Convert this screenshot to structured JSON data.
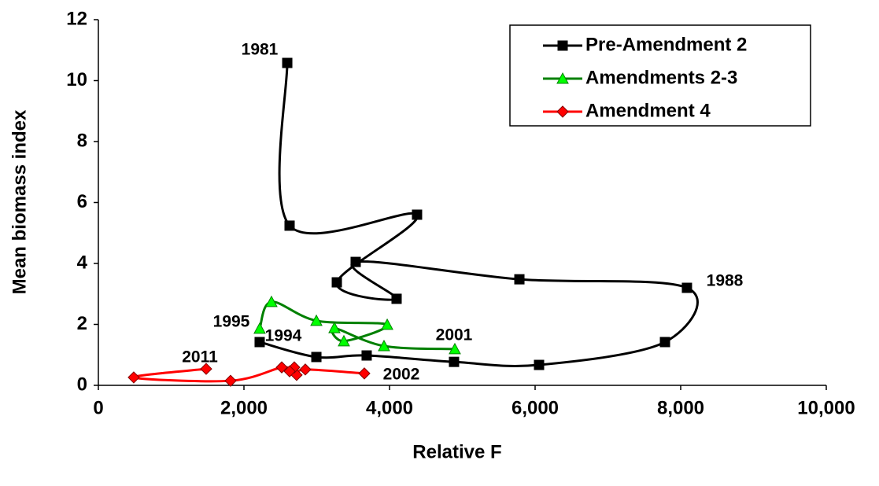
{
  "chart_data": {
    "type": "line",
    "x_label": "Relative F",
    "y_label": "Mean biomass index",
    "xlim": [
      0,
      10000
    ],
    "ylim": [
      0,
      12
    ],
    "xticks": [
      0,
      {
        "value": 2000,
        "label": "2,000"
      },
      {
        "value": 4000,
        "label": "4,000"
      },
      {
        "value": 6000,
        "label": "6,000"
      },
      {
        "value": 8000,
        "label": "8,000"
      },
      {
        "value": 10000,
        "label": "10,000"
      }
    ],
    "yticks": [
      0,
      2,
      4,
      6,
      8,
      10,
      12
    ],
    "grid": false,
    "legend": "upper right",
    "smooth": true,
    "series": [
      {
        "name": "Pre-Amendment 2",
        "color": "#000000",
        "marker": "square",
        "marker_color": "#000000",
        "x": [
          2595,
          2627,
          4378,
          3276,
          4097,
          3535,
          5784,
          8086,
          7784,
          6054,
          4886,
          3686,
          2995,
          2216
        ],
        "values": [
          10.58,
          5.24,
          5.6,
          3.38,
          2.84,
          4.05,
          3.48,
          3.2,
          1.42,
          0.67,
          0.77,
          0.98,
          0.93,
          1.42
        ]
      },
      {
        "name": "Amendments 2-3",
        "color": "#008000",
        "marker": "triangle",
        "marker_color": "#00ff00",
        "x": [
          2216,
          2378,
          2995,
          3968,
          3373,
          3243,
          3924,
          4897
        ],
        "values": [
          1.86,
          2.74,
          2.12,
          1.99,
          1.45,
          1.88,
          1.29,
          1.19
        ]
      },
      {
        "name": "Amendment 4",
        "color": "#ff0000",
        "marker": "diamond",
        "marker_color": "#ff0000",
        "x": [
          3654,
          2843,
          2724,
          2692,
          2627,
          2519,
          1816,
          486,
          1481
        ],
        "values": [
          0.39,
          0.52,
          0.34,
          0.59,
          0.46,
          0.59,
          0.15,
          0.26,
          0.54
        ]
      }
    ],
    "annotations": [
      "1981",
      "1988",
      "1994",
      "1995",
      "2001",
      "2002",
      "2011"
    ]
  }
}
